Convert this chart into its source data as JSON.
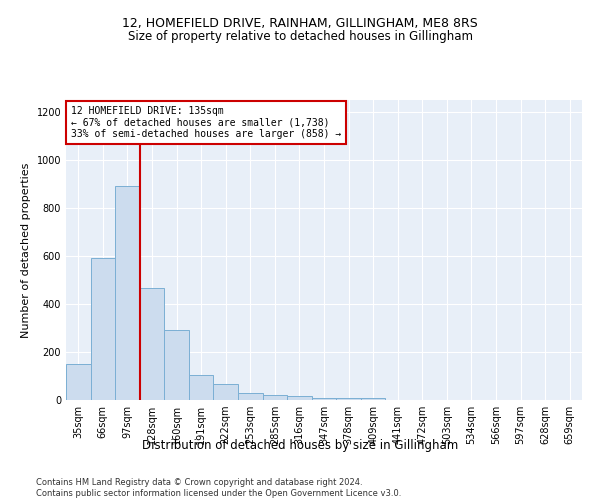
{
  "title": "12, HOMEFIELD DRIVE, RAINHAM, GILLINGHAM, ME8 8RS",
  "subtitle": "Size of property relative to detached houses in Gillingham",
  "xlabel": "Distribution of detached houses by size in Gillingham",
  "ylabel": "Number of detached properties",
  "bar_color": "#ccdcee",
  "bar_edge_color": "#7bafd4",
  "background_color": "#e8eff8",
  "categories": [
    "35sqm",
    "66sqm",
    "97sqm",
    "128sqm",
    "160sqm",
    "191sqm",
    "222sqm",
    "253sqm",
    "285sqm",
    "316sqm",
    "347sqm",
    "378sqm",
    "409sqm",
    "441sqm",
    "472sqm",
    "503sqm",
    "534sqm",
    "566sqm",
    "597sqm",
    "628sqm",
    "659sqm"
  ],
  "values": [
    150,
    590,
    890,
    465,
    290,
    105,
    65,
    30,
    20,
    15,
    10,
    10,
    10,
    0,
    0,
    0,
    0,
    0,
    0,
    0,
    0
  ],
  "annotation_title": "12 HOMEFIELD DRIVE: 135sqm",
  "annotation_line1": "← 67% of detached houses are smaller (1,738)",
  "annotation_line2": "33% of semi-detached houses are larger (858) →",
  "vline_color": "#cc0000",
  "annotation_box_facecolor": "#ffffff",
  "annotation_box_edgecolor": "#cc0000",
  "ylim": [
    0,
    1250
  ],
  "yticks": [
    0,
    200,
    400,
    600,
    800,
    1000,
    1200
  ],
  "title_fontsize": 9,
  "subtitle_fontsize": 8.5,
  "ylabel_fontsize": 8,
  "xlabel_fontsize": 8.5,
  "tick_fontsize": 7,
  "annotation_fontsize": 7,
  "footer_line1": "Contains HM Land Registry data © Crown copyright and database right 2024.",
  "footer_line2": "Contains public sector information licensed under the Open Government Licence v3.0.",
  "footer_fontsize": 6
}
